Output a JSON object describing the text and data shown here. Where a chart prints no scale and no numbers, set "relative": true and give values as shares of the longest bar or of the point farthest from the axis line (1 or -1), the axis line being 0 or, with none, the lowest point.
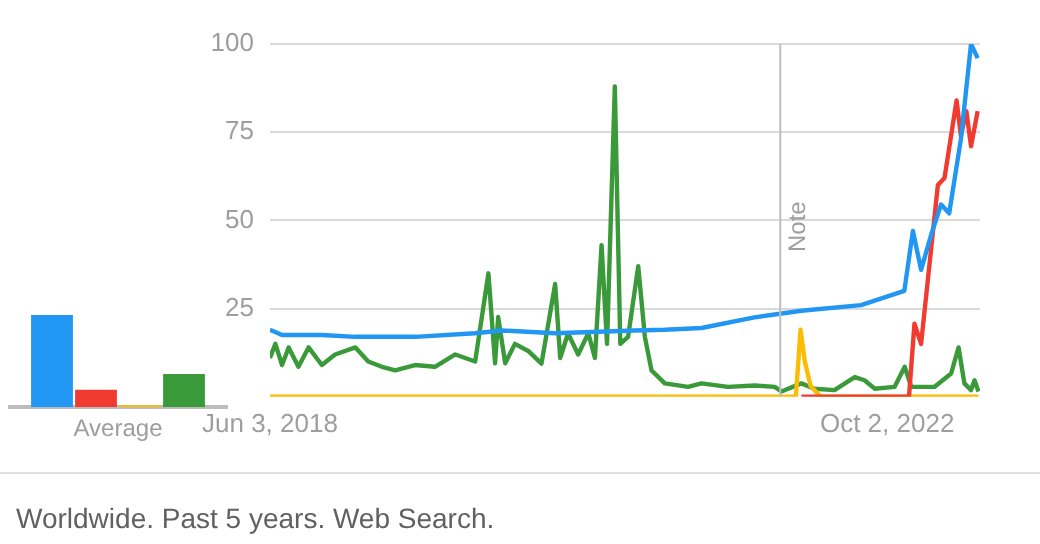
{
  "chart_data": [
    {
      "type": "bar",
      "relative": true,
      "tick_labels": "x",
      "categories": [
        "Average"
      ],
      "series": [
        {
          "color": "#2196f3",
          "values": [
            1
          ]
        },
        {
          "color": "#f03c30",
          "values": [
            0.19
          ]
        },
        {
          "color": "#fbbc04",
          "values": [
            0.02
          ]
        },
        {
          "color": "#3a9a3a",
          "values": [
            0.36
          ]
        }
      ]
    },
    {
      "type": "line",
      "marker": "none",
      "grid": "y",
      "xlim": [
        "2018-06-03",
        "2023-05-28"
      ],
      "ylim": [
        0,
        100
      ],
      "yticks": [
        25,
        50,
        75,
        100
      ],
      "xticks": [
        {
          "value": "2018-06-03",
          "label": "Jun 3, 2018"
        },
        {
          "value": "2022-10-02",
          "label": "Oct 2, 2022"
        }
      ],
      "ref_lines": [
        {
          "axis": "x",
          "value": "2022-01-01",
          "label": "Note",
          "color": "#bdbdbd"
        }
      ],
      "annotations": [
        "Worldwide. Past 5 years. Web Search."
      ],
      "series": [
        {
          "color": "#2196f3",
          "x": [
            "2018-06-03",
            "2018-07-04",
            "2018-10-14",
            "2019-01-08",
            "2019-06-10",
            "2019-11-11",
            "2020-01-18",
            "2020-06-03",
            "2020-12-24",
            "2021-03-11",
            "2021-06-13",
            "2021-10-27",
            "2022-02-24",
            "2022-07-27",
            "2022-11-15",
            "2022-12-07",
            "2022-12-28",
            "2023-01-23",
            "2023-02-17",
            "2023-03-10",
            "2023-04-09",
            "2023-05-05",
            "2023-05-22"
          ],
          "values": [
            19,
            17.5,
            17.5,
            17,
            17,
            18,
            18.8,
            18,
            18.8,
            19,
            19.5,
            22.5,
            24.4,
            26,
            30,
            47,
            36,
            46,
            54.5,
            52,
            73,
            100,
            96
          ]
        },
        {
          "color": "#f03c30",
          "x": [
            "2022-02-24",
            "2022-11-27",
            "2022-12-11",
            "2022-12-28",
            "2023-02-09",
            "2023-02-26",
            "2023-03-29",
            "2023-04-09",
            "2023-04-23",
            "2023-05-05",
            "2023-05-22"
          ],
          "values": [
            0,
            0,
            20.7,
            15,
            60,
            62,
            84,
            74,
            81,
            71,
            81
          ]
        },
        {
          "color": "#fbbc04",
          "x": [
            "2018-06-03",
            "2022-02-10",
            "2022-02-22",
            "2022-03-05",
            "2022-03-20",
            "2022-04-15",
            "2023-05-24"
          ],
          "values": [
            0,
            0,
            19,
            10,
            3,
            0,
            0
          ]
        },
        {
          "color": "#3a9a3a",
          "x": [
            "2018-06-03",
            "2018-06-17",
            "2018-07-04",
            "2018-07-21",
            "2018-08-15",
            "2018-09-10",
            "2018-10-14",
            "2018-11-17",
            "2019-01-08",
            "2019-02-10",
            "2019-03-17",
            "2019-04-20",
            "2019-06-10",
            "2019-07-31",
            "2019-09-21",
            "2019-11-11",
            "2019-12-15",
            "2020-01-01",
            "2020-01-09",
            "2020-01-27",
            "2020-02-21",
            "2020-03-26",
            "2020-04-29",
            "2020-06-03",
            "2020-06-16",
            "2020-07-06",
            "2020-08-01",
            "2020-08-27",
            "2020-09-13",
            "2020-09-30",
            "2020-10-14",
            "2020-11-03",
            "2020-11-17",
            "2020-12-07",
            "2021-01-02",
            "2021-01-19",
            "2021-02-05",
            "2021-03-11",
            "2021-05-10",
            "2021-06-13",
            "2021-08-20",
            "2021-10-28",
            "2021-12-18",
            "2022-01-04",
            "2022-02-24",
            "2022-03-30",
            "2022-05-20",
            "2022-07-11",
            "2022-08-05",
            "2022-08-31",
            "2022-10-21",
            "2022-11-16",
            "2022-12-03",
            "2023-01-31",
            "2023-03-15",
            "2023-04-03",
            "2023-04-18",
            "2023-05-05",
            "2023-05-14",
            "2023-05-24"
          ],
          "values": [
            11,
            15,
            9,
            14,
            8.5,
            14,
            9,
            12,
            14,
            10,
            8.5,
            7.5,
            9,
            8.5,
            12,
            10,
            35,
            9.5,
            22.6,
            9.5,
            15,
            13,
            9.4,
            32,
            11,
            18,
            12,
            18,
            11,
            43,
            15,
            88,
            15,
            17,
            37,
            17,
            7.5,
            3.8,
            2.8,
            3.8,
            2.8,
            3.2,
            2.8,
            1.5,
            3.8,
            2.3,
            1.9,
            5.6,
            4.7,
            2.3,
            2.8,
            8.5,
            2.8,
            2.8,
            6.6,
            14,
            3.8,
            1.9,
            4.7,
            1.5
          ]
        }
      ]
    }
  ]
}
